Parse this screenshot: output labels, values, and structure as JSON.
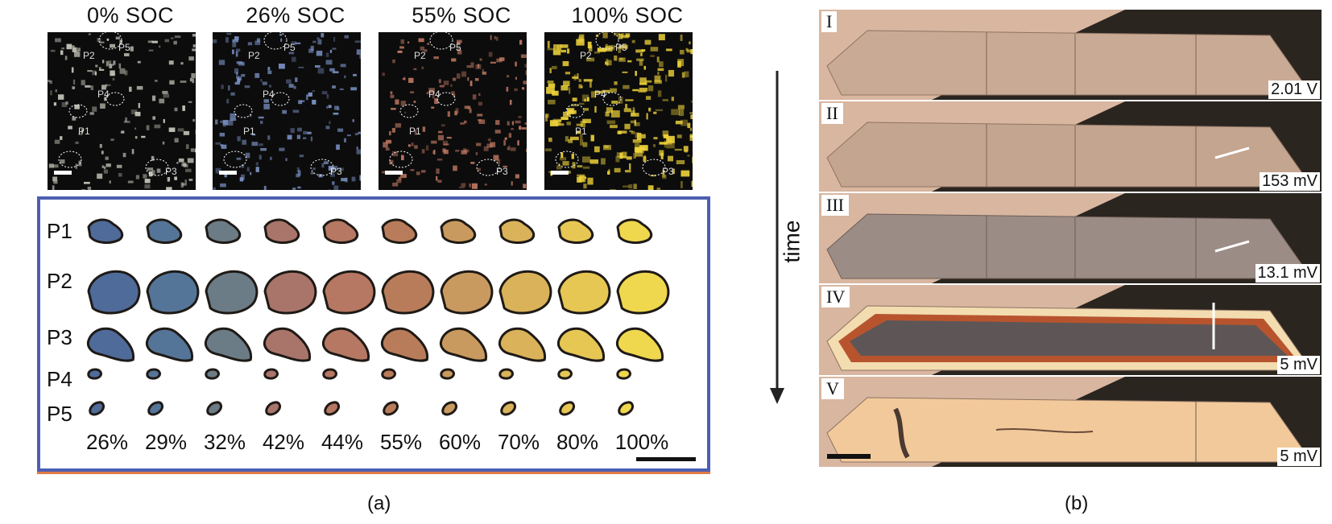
{
  "panel_a": {
    "soc_titles": [
      "0% SOC",
      "26% SOC",
      "55% SOC",
      "100% SOC"
    ],
    "particle_labels": [
      "P1",
      "P2",
      "P3",
      "P4",
      "P5"
    ],
    "percentages": [
      "26%",
      "29%",
      "32%",
      "42%",
      "44%",
      "55%",
      "60%",
      "70%",
      "80%",
      "100%"
    ],
    "caption": "(a)"
  },
  "panel_b": {
    "axis_label": "time",
    "frames": [
      {
        "label": "I",
        "voltage": "2.01 V"
      },
      {
        "label": "II",
        "voltage": "153 mV"
      },
      {
        "label": "III",
        "voltage": "13.1 mV"
      },
      {
        "label": "IV",
        "voltage": "5 mV"
      },
      {
        "label": "V",
        "voltage": "5 mV"
      }
    ],
    "caption": "(b)"
  },
  "colors": {
    "inset_border": "#4d5fb3",
    "soc_0": "#c9c9bd",
    "soc_26": "#7d94c8",
    "soc_55": "#c27a63",
    "soc_100": "#f0d43a"
  }
}
